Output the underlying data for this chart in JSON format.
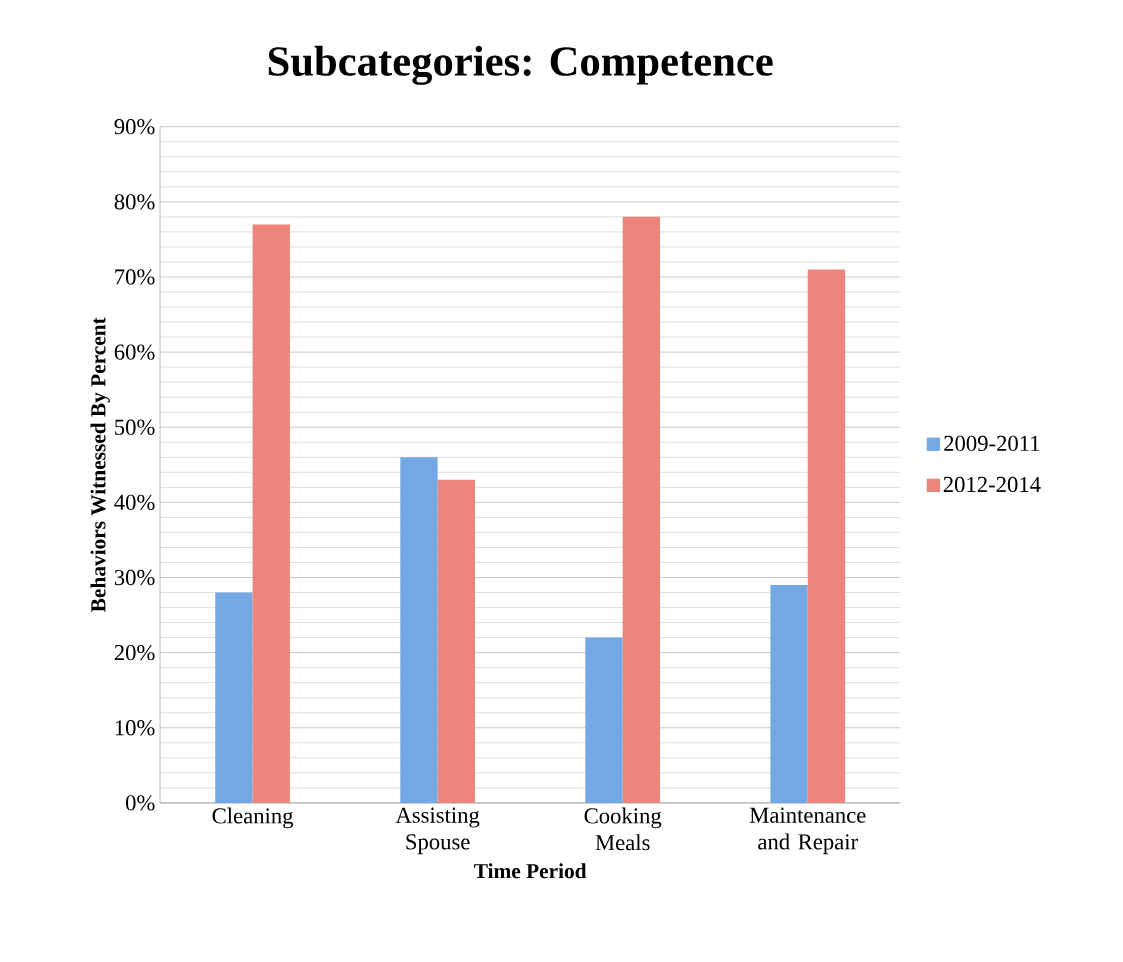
{
  "chart_data": {
    "type": "bar",
    "title": "Subcategories: Competence",
    "xlabel": "Time Period",
    "ylabel": "Behaviors Witnessed By Percent",
    "categories": [
      "Cleaning",
      "Assisting Spouse",
      "Cooking Meals",
      "Maintenance and Repair"
    ],
    "series": [
      {
        "name": "2009-2011",
        "color": "#74a8e4",
        "values": [
          28,
          46,
          22,
          29
        ]
      },
      {
        "name": "2012-2014",
        "color": "#ec857c",
        "values": [
          77,
          43,
          78,
          71
        ]
      }
    ],
    "ylim": [
      0,
      90
    ],
    "yticks": [
      {
        "value": 0,
        "label": "0%"
      },
      {
        "value": 10,
        "label": "10%"
      },
      {
        "value": 20,
        "label": "20%"
      },
      {
        "value": 30,
        "label": "30%"
      },
      {
        "value": 40,
        "label": "40%"
      },
      {
        "value": 50,
        "label": "50%"
      },
      {
        "value": 60,
        "label": "60%"
      },
      {
        "value": 70,
        "label": "70%"
      },
      {
        "value": 80,
        "label": "80%"
      },
      {
        "value": 90,
        "label": "90%"
      }
    ],
    "grid": "y",
    "legend": "right"
  }
}
